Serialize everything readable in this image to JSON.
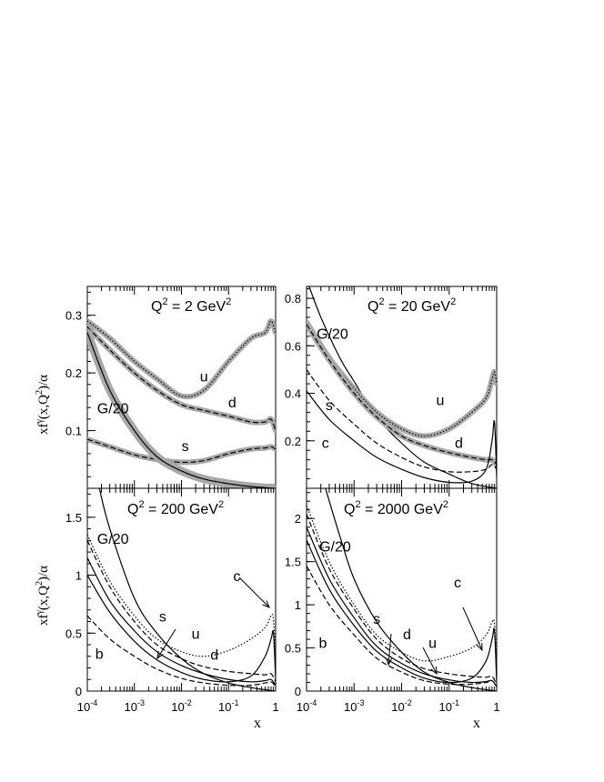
{
  "figure": {
    "ylabel_main": "xf",
    "ylabel_sup": "γ",
    "ylabel_rest": "(x,Q",
    "ylabel_sup2": "2",
    "ylabel_tail": ")/α",
    "xlabel": "x"
  },
  "chart_data": [
    {
      "type": "line",
      "title": "Q² = 2 GeV²",
      "title_parts": [
        "Q",
        "2",
        " = 2 GeV",
        "2"
      ],
      "xscale": "log",
      "xlim": [
        0.0001,
        1
      ],
      "ylim": [
        0,
        0.35
      ],
      "yticks": [
        0.1,
        0.2,
        0.3
      ],
      "ytick_labels": [
        "0.1",
        "0.2",
        "0.3"
      ],
      "xtick_labels": [],
      "series": [
        {
          "name": "u",
          "style": "band-dotted",
          "x": [
            0.0001,
            0.0003,
            0.001,
            0.003,
            0.01,
            0.03,
            0.1,
            0.3,
            0.6,
            0.8,
            1
          ],
          "y": [
            0.29,
            0.26,
            0.22,
            0.19,
            0.16,
            0.17,
            0.22,
            0.26,
            0.27,
            0.29,
            0.27
          ]
        },
        {
          "name": "d",
          "style": "band-dashed",
          "x": [
            0.0001,
            0.0003,
            0.001,
            0.003,
            0.01,
            0.03,
            0.1,
            0.3,
            0.6,
            0.8,
            1
          ],
          "y": [
            0.28,
            0.24,
            0.2,
            0.17,
            0.145,
            0.135,
            0.125,
            0.115,
            0.115,
            0.12,
            0.1
          ]
        },
        {
          "name": "s",
          "style": "band-dashed",
          "x": [
            0.0001,
            0.0003,
            0.001,
            0.003,
            0.01,
            0.03,
            0.1,
            0.3,
            0.6,
            0.8,
            1
          ],
          "y": [
            0.085,
            0.072,
            0.058,
            0.05,
            0.045,
            0.048,
            0.06,
            0.068,
            0.07,
            0.072,
            0.068
          ]
        },
        {
          "name": "G/20",
          "style": "band-solid",
          "x": [
            0.0001,
            0.0003,
            0.001,
            0.003,
            0.01,
            0.03,
            0.1,
            0.3,
            1
          ],
          "y": [
            0.27,
            0.17,
            0.1,
            0.055,
            0.03,
            0.016,
            0.008,
            0.003,
            0
          ]
        }
      ],
      "annotations": [
        {
          "text": "u",
          "x": 0.03,
          "y": 0.185
        },
        {
          "text": "d",
          "x": 0.12,
          "y": 0.14
        },
        {
          "text": "G/20",
          "x": 0.00035,
          "y": 0.13
        },
        {
          "text": "s",
          "x": 0.012,
          "y": 0.065
        }
      ]
    },
    {
      "type": "line",
      "title": "Q² = 20 GeV²",
      "title_parts": [
        "Q",
        "2",
        " = 20 GeV",
        "2"
      ],
      "xscale": "log",
      "xlim": [
        0.0001,
        1
      ],
      "ylim": [
        0,
        0.85
      ],
      "yticks": [
        0.2,
        0.4,
        0.6,
        0.8
      ],
      "ytick_labels": [
        "0.2",
        "0.4",
        "0.6",
        "0.8"
      ],
      "xtick_labels": [],
      "series": [
        {
          "name": "G/20",
          "style": "solid",
          "x": [
            0.0001,
            0.0002,
            0.0005,
            0.001,
            0.003,
            0.01,
            0.03,
            0.1,
            0.3,
            1
          ],
          "y": [
            0.88,
            0.72,
            0.55,
            0.45,
            0.3,
            0.19,
            0.11,
            0.06,
            0.02,
            0
          ]
        },
        {
          "name": "u",
          "style": "band-dotted",
          "x": [
            0.0001,
            0.0003,
            0.001,
            0.003,
            0.01,
            0.03,
            0.1,
            0.3,
            0.6,
            0.8,
            0.9,
            1
          ],
          "y": [
            0.7,
            0.55,
            0.42,
            0.32,
            0.25,
            0.22,
            0.25,
            0.32,
            0.38,
            0.46,
            0.49,
            0.44
          ]
        },
        {
          "name": "d",
          "style": "band-dashed",
          "x": [
            0.0001,
            0.0003,
            0.001,
            0.003,
            0.01,
            0.03,
            0.1,
            0.3,
            0.6,
            0.8,
            1
          ],
          "y": [
            0.69,
            0.54,
            0.4,
            0.3,
            0.22,
            0.18,
            0.15,
            0.13,
            0.12,
            0.12,
            0.1
          ]
        },
        {
          "name": "s",
          "style": "dashed",
          "x": [
            0.0001,
            0.0003,
            0.001,
            0.003,
            0.01,
            0.03,
            0.1,
            0.3,
            0.6,
            0.8,
            1
          ],
          "y": [
            0.5,
            0.37,
            0.27,
            0.19,
            0.13,
            0.09,
            0.07,
            0.07,
            0.08,
            0.1,
            0.08
          ]
        },
        {
          "name": "c",
          "style": "solid",
          "x": [
            0.0001,
            0.0003,
            0.001,
            0.003,
            0.01,
            0.03,
            0.1,
            0.3,
            0.6,
            0.8,
            0.9,
            1
          ],
          "y": [
            0.41,
            0.29,
            0.2,
            0.13,
            0.08,
            0.045,
            0.025,
            0.03,
            0.08,
            0.2,
            0.28,
            0.05
          ]
        }
      ],
      "annotations": [
        {
          "text": "G/20",
          "x": 0.00035,
          "y": 0.63
        },
        {
          "text": "u",
          "x": 0.065,
          "y": 0.35
        },
        {
          "text": "s",
          "x": 0.0003,
          "y": 0.33
        },
        {
          "text": "d",
          "x": 0.16,
          "y": 0.17
        },
        {
          "text": "c",
          "x": 0.00025,
          "y": 0.17
        }
      ]
    },
    {
      "type": "line",
      "title": "Q² = 200 GeV²",
      "title_parts": [
        "Q",
        "2",
        " = 200 GeV",
        "2"
      ],
      "xscale": "log",
      "xlim": [
        0.0001,
        1
      ],
      "ylim": [
        0,
        1.75
      ],
      "yticks": [
        0,
        0.5,
        1,
        1.5
      ],
      "ytick_labels": [
        "0",
        "0.5",
        "1",
        "1.5"
      ],
      "xtick_labels": [
        "10-4",
        "10-3",
        "10-2",
        "10-1",
        "1"
      ],
      "series": [
        {
          "name": "G/20",
          "style": "solid",
          "x": [
            0.00018,
            0.0003,
            0.001,
            0.003,
            0.01,
            0.03,
            0.1,
            0.3,
            1
          ],
          "y": [
            1.75,
            1.4,
            0.8,
            0.5,
            0.28,
            0.15,
            0.07,
            0.03,
            0
          ]
        },
        {
          "name": "u",
          "style": "dotted",
          "x": [
            0.0001,
            0.0003,
            0.001,
            0.003,
            0.01,
            0.03,
            0.1,
            0.3,
            0.6,
            0.8,
            0.9,
            1
          ],
          "y": [
            1.35,
            0.95,
            0.65,
            0.45,
            0.34,
            0.3,
            0.35,
            0.45,
            0.55,
            0.65,
            0.62,
            0.3
          ]
        },
        {
          "name": "d",
          "style": "dashed",
          "x": [
            0.0001,
            0.0003,
            0.001,
            0.003,
            0.01,
            0.03,
            0.1,
            0.3,
            0.6,
            0.8,
            1
          ],
          "y": [
            1.3,
            0.9,
            0.6,
            0.4,
            0.28,
            0.21,
            0.17,
            0.15,
            0.14,
            0.15,
            0.08
          ]
        },
        {
          "name": "s",
          "style": "solid",
          "x": [
            0.0001,
            0.0003,
            0.001,
            0.003,
            0.01,
            0.03,
            0.1,
            0.3,
            0.6,
            0.8,
            1
          ],
          "y": [
            1.15,
            0.78,
            0.52,
            0.34,
            0.22,
            0.15,
            0.1,
            0.08,
            0.09,
            0.1,
            0.05
          ]
        },
        {
          "name": "c",
          "style": "solid",
          "x": [
            0.0001,
            0.0003,
            0.001,
            0.003,
            0.01,
            0.03,
            0.1,
            0.3,
            0.6,
            0.8,
            0.9,
            1
          ],
          "y": [
            1.0,
            0.68,
            0.43,
            0.27,
            0.16,
            0.1,
            0.08,
            0.13,
            0.3,
            0.45,
            0.5,
            0.1
          ]
        },
        {
          "name": "b",
          "style": "dashed",
          "x": [
            0.0001,
            0.0003,
            0.001,
            0.003,
            0.01,
            0.03,
            0.1,
            0.3,
            0.6,
            0.8,
            1
          ],
          "y": [
            0.65,
            0.45,
            0.3,
            0.19,
            0.11,
            0.07,
            0.05,
            0.05,
            0.07,
            0.08,
            0.04
          ]
        }
      ],
      "annotations": [
        {
          "text": "G/20",
          "x": 0.00035,
          "y": 1.27
        },
        {
          "text": "c",
          "x": 0.15,
          "y": 0.95
        },
        {
          "text": "s",
          "x": 0.004,
          "y": 0.6
        },
        {
          "text": "u",
          "x": 0.02,
          "y": 0.45
        },
        {
          "text": "d",
          "x": 0.05,
          "y": 0.27
        },
        {
          "text": "b",
          "x": 0.00018,
          "y": 0.28
        }
      ]
    },
    {
      "type": "line",
      "title": "Q² = 2000 GeV²",
      "title_parts": [
        "Q",
        "2",
        " = 2000 GeV",
        "2"
      ],
      "xscale": "log",
      "xlim": [
        0.0001,
        1
      ],
      "ylim": [
        0,
        2.35
      ],
      "yticks": [
        0,
        0.5,
        1,
        1.5,
        2
      ],
      "ytick_labels": [
        "0",
        "0.5",
        "1",
        "1.5",
        "2"
      ],
      "xtick_labels": [
        "10-4",
        "10-3",
        "10-2",
        "10-1",
        "1"
      ],
      "series": [
        {
          "name": "G/20",
          "style": "solid",
          "x": [
            0.00025,
            0.0005,
            0.001,
            0.003,
            0.01,
            0.03,
            0.1,
            0.3,
            1
          ],
          "y": [
            2.35,
            1.8,
            1.3,
            0.8,
            0.45,
            0.22,
            0.1,
            0.04,
            0
          ]
        },
        {
          "name": "u",
          "style": "dotted",
          "x": [
            0.0001,
            0.0003,
            0.001,
            0.003,
            0.01,
            0.03,
            0.1,
            0.3,
            0.6,
            0.8,
            0.9,
            1
          ],
          "y": [
            2.15,
            1.5,
            1.0,
            0.65,
            0.45,
            0.35,
            0.4,
            0.5,
            0.65,
            0.8,
            0.78,
            0.3
          ]
        },
        {
          "name": "d",
          "style": "dashed",
          "x": [
            0.0001,
            0.0003,
            0.001,
            0.003,
            0.01,
            0.03,
            0.1,
            0.3,
            0.6,
            0.8,
            1
          ],
          "y": [
            2.05,
            1.42,
            0.95,
            0.6,
            0.38,
            0.26,
            0.2,
            0.17,
            0.16,
            0.17,
            0.08
          ]
        },
        {
          "name": "s",
          "style": "solid",
          "x": [
            0.0001,
            0.0003,
            0.001,
            0.003,
            0.01,
            0.03,
            0.1,
            0.3,
            0.6,
            0.8,
            1
          ],
          "y": [
            1.9,
            1.3,
            0.85,
            0.52,
            0.32,
            0.2,
            0.13,
            0.1,
            0.11,
            0.12,
            0.05
          ]
        },
        {
          "name": "c",
          "style": "solid",
          "x": [
            0.0001,
            0.0003,
            0.001,
            0.003,
            0.01,
            0.03,
            0.1,
            0.3,
            0.6,
            0.8,
            0.9,
            1
          ],
          "y": [
            1.75,
            1.18,
            0.76,
            0.46,
            0.27,
            0.15,
            0.1,
            0.15,
            0.35,
            0.6,
            0.7,
            0.1
          ]
        },
        {
          "name": "b",
          "style": "dashed",
          "x": [
            0.0001,
            0.0003,
            0.001,
            0.003,
            0.01,
            0.03,
            0.1,
            0.3,
            0.6,
            0.8,
            1
          ],
          "y": [
            1.45,
            1.0,
            0.65,
            0.38,
            0.22,
            0.12,
            0.08,
            0.08,
            0.1,
            0.12,
            0.05
          ]
        }
      ],
      "annotations": [
        {
          "text": "G/20",
          "x": 0.0004,
          "y": 1.62
        },
        {
          "text": "c",
          "x": 0.15,
          "y": 1.2
        },
        {
          "text": "s",
          "x": 0.003,
          "y": 0.78
        },
        {
          "text": "d",
          "x": 0.013,
          "y": 0.6
        },
        {
          "text": "u",
          "x": 0.045,
          "y": 0.5
        },
        {
          "text": "b",
          "x": 0.00022,
          "y": 0.5
        }
      ]
    }
  ]
}
